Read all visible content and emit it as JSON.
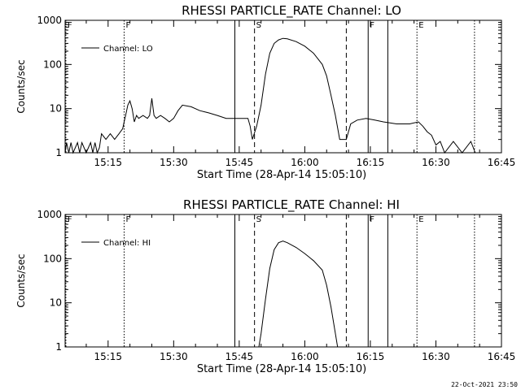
{
  "chart_data": [
    {
      "type": "line",
      "title": "RHESSI PARTICLE_RATE Channel: LO",
      "xlabel": "Start Time (28-Apr-14 15:05:10)",
      "ylabel": "Counts/sec",
      "xlim": [
        "15:05:10",
        "16:45"
      ],
      "ylim": [
        1,
        1000
      ],
      "y_scale": "log",
      "x_ticks": [
        "15:15",
        "15:30",
        "15:45",
        "16:00",
        "16:15",
        "16:30",
        "16:45"
      ],
      "y_ticks": [
        "1",
        "10",
        "100",
        "1000"
      ],
      "legend": {
        "location": "top-left"
      },
      "series": [
        {
          "name": "Channel: LO",
          "points": [
            [
              "15:05:10",
              1
            ],
            [
              "15:05:30",
              1.7
            ],
            [
              "15:06:00",
              1
            ],
            [
              "15:06:30",
              1.7
            ],
            [
              "15:07:00",
              1
            ],
            [
              "15:08:00",
              1.7
            ],
            [
              "15:08:30",
              1
            ],
            [
              "15:09:00",
              1.7
            ],
            [
              "15:10:00",
              1
            ],
            [
              "15:11:00",
              1.7
            ],
            [
              "15:11:30",
              1
            ],
            [
              "15:12:00",
              1.7
            ],
            [
              "15:12:30",
              1
            ],
            [
              "15:13:00",
              1.3
            ],
            [
              "15:13:30",
              2.7
            ],
            [
              "15:14:30",
              2
            ],
            [
              "15:15:30",
              2.7
            ],
            [
              "15:16:30",
              2
            ],
            [
              "15:17:30",
              2.7
            ],
            [
              "15:18:20",
              3.5
            ],
            [
              "15:18:40",
              5
            ],
            [
              "15:19:00",
              7
            ],
            [
              "15:19:30",
              12
            ],
            [
              "15:20:00",
              15
            ],
            [
              "15:20:30",
              10
            ],
            [
              "15:21:00",
              5
            ],
            [
              "15:21:30",
              7
            ],
            [
              "15:22:00",
              6
            ],
            [
              "15:23:00",
              7
            ],
            [
              "15:24:00",
              6
            ],
            [
              "15:24:30",
              7
            ],
            [
              "15:25:00",
              17
            ],
            [
              "15:25:30",
              7
            ],
            [
              "15:26:00",
              6
            ],
            [
              "15:27:00",
              7
            ],
            [
              "15:28:00",
              6
            ],
            [
              "15:29:00",
              5
            ],
            [
              "15:30:00",
              6
            ],
            [
              "15:31:00",
              9
            ],
            [
              "15:32:00",
              12
            ],
            [
              "15:34:00",
              11
            ],
            [
              "15:36:00",
              9
            ],
            [
              "15:38:00",
              8
            ],
            [
              "15:40:00",
              7
            ],
            [
              "15:42:00",
              6
            ],
            [
              "15:44:00",
              6
            ],
            [
              "15:46:00",
              6
            ],
            [
              "15:47:00",
              6
            ],
            [
              "15:47:30",
              4
            ],
            [
              "15:48:00",
              2
            ],
            [
              "15:49:00",
              4
            ],
            [
              "15:50:00",
              12
            ],
            [
              "15:51:00",
              60
            ],
            [
              "15:52:00",
              180
            ],
            [
              "15:53:00",
              300
            ],
            [
              "15:54:00",
              360
            ],
            [
              "15:55:00",
              390
            ],
            [
              "15:56:00",
              380
            ],
            [
              "15:58:00",
              330
            ],
            [
              "16:00:00",
              260
            ],
            [
              "16:02:00",
              180
            ],
            [
              "16:04:00",
              100
            ],
            [
              "16:05:00",
              55
            ],
            [
              "16:06:00",
              20
            ],
            [
              "16:07:00",
              7
            ],
            [
              "16:08:00",
              2
            ],
            [
              "16:09:30",
              2
            ],
            [
              "16:10:30",
              4.5
            ],
            [
              "16:12:00",
              5.5
            ],
            [
              "16:14:00",
              6
            ],
            [
              "16:16:00",
              5.5
            ],
            [
              "16:18:00",
              5
            ],
            [
              "16:21:00",
              4.5
            ],
            [
              "16:24:00",
              4.5
            ],
            [
              "16:26:00",
              5
            ],
            [
              "16:27:00",
              4
            ],
            [
              "16:28:00",
              3
            ],
            [
              "16:29:00",
              2.5
            ],
            [
              "16:30:00",
              1.5
            ],
            [
              "16:31:00",
              1.8
            ],
            [
              "16:32:00",
              1
            ],
            [
              "16:34:00",
              1.8
            ],
            [
              "16:36:00",
              1
            ],
            [
              "16:38:00",
              1.8
            ],
            [
              "16:39:00",
              1
            ]
          ]
        }
      ],
      "markers": [
        {
          "label": "F",
          "time": "15:05:20",
          "style": "dotted"
        },
        {
          "label": "F",
          "time": "15:18:40",
          "style": "dotted"
        },
        {
          "label": "",
          "time": "15:44:00",
          "style": "solid"
        },
        {
          "label": "S",
          "time": "15:48:30",
          "style": "dashed"
        },
        {
          "label": "",
          "time": "16:09:30",
          "style": "dashed"
        },
        {
          "label": "F",
          "time": "16:14:30",
          "style": "solid"
        },
        {
          "label": "",
          "time": "16:19:00",
          "style": "solid"
        },
        {
          "label": "E",
          "time": "16:25:40",
          "style": "dotted"
        },
        {
          "label": "",
          "time": "16:38:50",
          "style": "dotted"
        }
      ]
    },
    {
      "type": "line",
      "title": "RHESSI PARTICLE_RATE Channel: HI",
      "xlabel": "Start Time (28-Apr-14 15:05:10)",
      "ylabel": "Counts/sec",
      "xlim": [
        "15:05:10",
        "16:45"
      ],
      "ylim": [
        1,
        1000
      ],
      "y_scale": "log",
      "x_ticks": [
        "15:15",
        "15:30",
        "15:45",
        "16:00",
        "16:15",
        "16:30",
        "16:45"
      ],
      "y_ticks": [
        "1",
        "10",
        "100",
        "1000"
      ],
      "legend": {
        "location": "top-left"
      },
      "series": [
        {
          "name": "Channel: HI",
          "points": [
            [
              "15:49:30",
              1
            ],
            [
              "15:50:00",
              2
            ],
            [
              "15:51:00",
              12
            ],
            [
              "15:52:00",
              60
            ],
            [
              "15:53:00",
              160
            ],
            [
              "15:54:00",
              230
            ],
            [
              "15:55:00",
              250
            ],
            [
              "15:56:00",
              230
            ],
            [
              "15:58:00",
              180
            ],
            [
              "16:00:00",
              130
            ],
            [
              "16:02:00",
              90
            ],
            [
              "16:04:00",
              55
            ],
            [
              "16:05:00",
              25
            ],
            [
              "16:06:00",
              8
            ],
            [
              "16:07:00",
              2
            ],
            [
              "16:07:30",
              1
            ]
          ]
        }
      ],
      "markers": [
        {
          "label": "F",
          "time": "15:05:20",
          "style": "dotted"
        },
        {
          "label": "F",
          "time": "15:18:40",
          "style": "dotted"
        },
        {
          "label": "",
          "time": "15:44:00",
          "style": "solid"
        },
        {
          "label": "S",
          "time": "15:48:30",
          "style": "dashed"
        },
        {
          "label": "",
          "time": "16:09:30",
          "style": "dashed"
        },
        {
          "label": "F",
          "time": "16:14:30",
          "style": "solid"
        },
        {
          "label": "",
          "time": "16:19:00",
          "style": "solid"
        },
        {
          "label": "E",
          "time": "16:25:40",
          "style": "dotted"
        },
        {
          "label": "",
          "time": "16:38:50",
          "style": "dotted"
        }
      ]
    }
  ],
  "footer": {
    "timestamp": "22-Oct-2021 23:50"
  }
}
